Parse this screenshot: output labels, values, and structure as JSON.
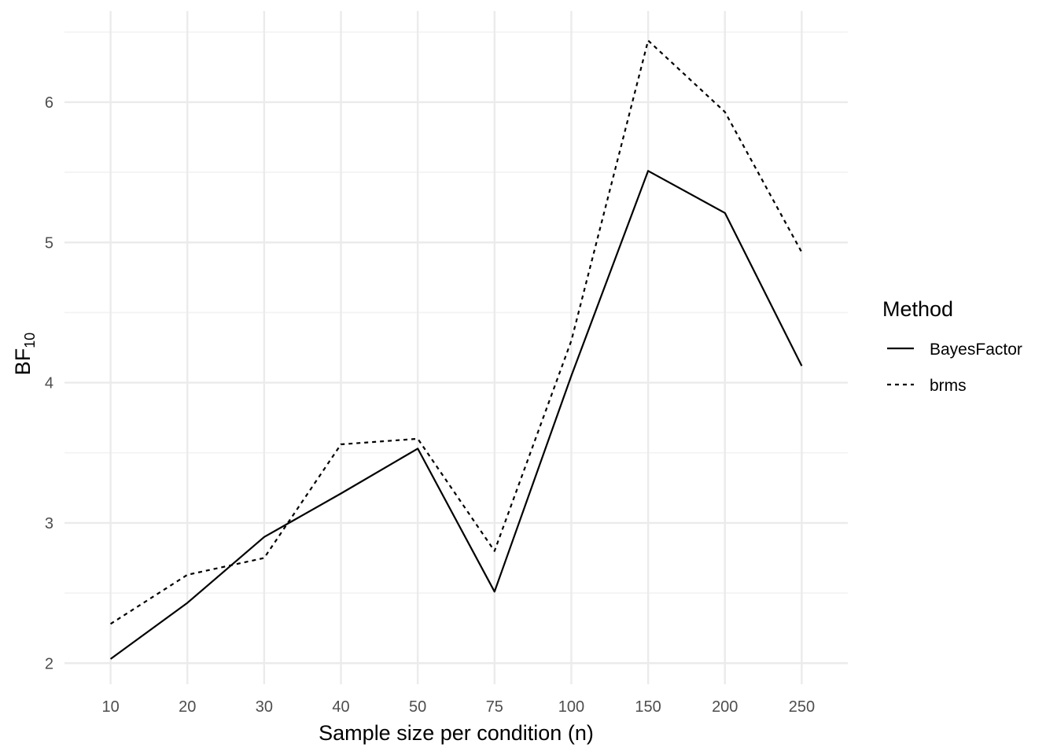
{
  "chart_data": {
    "type": "line",
    "xlabel": "Sample size per condition (n)",
    "ylabel_main": "BF",
    "ylabel_sub": "10",
    "categories": [
      "10",
      "20",
      "30",
      "40",
      "50",
      "75",
      "100",
      "150",
      "200",
      "250"
    ],
    "ylim": [
      1.85,
      6.65
    ],
    "yticks": [
      2,
      3,
      4,
      5,
      6
    ],
    "grid": true,
    "legend": {
      "title": "Method",
      "position": "right"
    },
    "series": [
      {
        "name": "BayesFactor",
        "line_style": "solid",
        "values": [
          2.03,
          2.43,
          2.9,
          3.21,
          3.53,
          2.51,
          4.05,
          5.51,
          5.21,
          4.12
        ]
      },
      {
        "name": "brms",
        "line_style": "dashed",
        "values": [
          2.28,
          2.63,
          2.75,
          3.56,
          3.6,
          2.8,
          4.3,
          6.44,
          5.93,
          4.93
        ]
      }
    ],
    "colors": {
      "line": "#000000",
      "grid_major": "#ebebeb",
      "grid_minor": "#f2f2f2",
      "tick_text": "#4d4d4d"
    }
  }
}
